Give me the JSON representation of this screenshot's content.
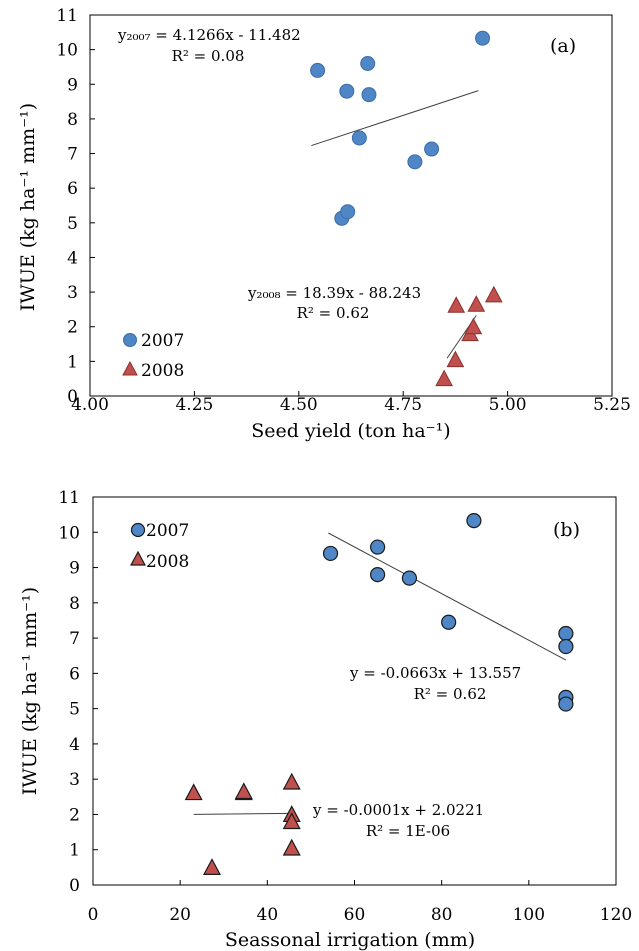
{
  "colors": {
    "series_2007": "#4f86c6",
    "series_2007_edge": "#3a6ea8",
    "series_2008": "#c0504d",
    "series_2008_edge": "#8c2f2c",
    "trendline": "#404040",
    "frame": "#000000"
  },
  "chart_data": [
    {
      "type": "scatter",
      "panel_label": "(a)",
      "xlabel": "Seed yield (ton ha⁻¹)",
      "ylabel": "IWUE (kg ha⁻¹ mm⁻¹)",
      "xlim": [
        4.0,
        5.25
      ],
      "ylim": [
        0,
        11
      ],
      "x_ticks": [
        "4.00",
        "4.25",
        "4.50",
        "4.75",
        "5.00",
        "5.25"
      ],
      "x_tick_values": [
        4.0,
        4.25,
        4.5,
        4.75,
        5.0,
        5.25
      ],
      "y_ticks": [
        "0",
        "1",
        "2",
        "3",
        "4",
        "5",
        "6",
        "7",
        "8",
        "9",
        "10",
        "11"
      ],
      "y_tick_values": [
        0,
        1,
        2,
        3,
        4,
        5,
        6,
        7,
        8,
        9,
        10,
        11
      ],
      "grid": false,
      "legend_placement": "bottom-left",
      "series": [
        {
          "name": "2007",
          "marker": "circle",
          "points": [
            [
              4.545,
              9.4
            ],
            [
              4.615,
              8.8
            ],
            [
              4.665,
              9.6
            ],
            [
              4.668,
              8.7
            ],
            [
              4.645,
              7.45
            ],
            [
              4.94,
              10.33
            ],
            [
              4.818,
              7.13
            ],
            [
              4.778,
              6.76
            ],
            [
              4.603,
              5.13
            ],
            [
              4.617,
              5.32
            ]
          ],
          "trendline": {
            "x": [
              4.53,
              4.93
            ],
            "equation_lines": [
              "y₂₀₀₇ = 4.1266x - 11.482",
              "R² = 0.08"
            ]
          }
        },
        {
          "name": "2008",
          "marker": "triangle",
          "points": [
            [
              4.848,
              0.5
            ],
            [
              4.875,
              1.05
            ],
            [
              4.877,
              2.62
            ],
            [
              4.91,
              1.8
            ],
            [
              4.918,
              2.0
            ],
            [
              4.925,
              2.65
            ],
            [
              4.967,
              2.92
            ]
          ],
          "trendline": {
            "x": [
              4.855,
              4.925
            ],
            "equation_lines": [
              "y₂₀₀₈ = 18.39x - 88.243",
              "R² = 0.62"
            ]
          }
        }
      ]
    },
    {
      "type": "scatter",
      "panel_label": "(b)",
      "xlabel": "Seassonal irrigation (mm)",
      "ylabel": "IWUE (kg ha⁻¹ mm⁻¹)",
      "xlim": [
        0,
        120
      ],
      "ylim": [
        0,
        11
      ],
      "x_ticks": [
        "0",
        "20",
        "40",
        "60",
        "80",
        "100",
        "120"
      ],
      "x_tick_values": [
        0,
        20,
        40,
        60,
        80,
        100,
        120
      ],
      "y_ticks": [
        "0",
        "1",
        "2",
        "3",
        "4",
        "5",
        "6",
        "7",
        "8",
        "9",
        "10",
        "11"
      ],
      "y_tick_values": [
        0,
        1,
        2,
        3,
        4,
        5,
        6,
        7,
        8,
        9,
        10,
        11
      ],
      "grid": false,
      "legend_placement": "top-left",
      "series": [
        {
          "name": "2007",
          "marker": "circle",
          "points": [
            [
              54.5,
              9.4
            ],
            [
              65.3,
              9.58
            ],
            [
              65.3,
              8.8
            ],
            [
              72.6,
              8.7
            ],
            [
              81.6,
              7.45
            ],
            [
              87.4,
              10.33
            ],
            [
              108.5,
              7.13
            ],
            [
              108.5,
              6.76
            ],
            [
              108.5,
              5.32
            ],
            [
              108.5,
              5.13
            ]
          ],
          "trendline": {
            "x": [
              54.0,
              108.5
            ],
            "equation_lines": [
              "y = -0.0663x + 13.557",
              "R² = 0.62"
            ]
          }
        },
        {
          "name": "2008",
          "marker": "triangle",
          "points": [
            [
              23.1,
              2.62
            ],
            [
              27.3,
              0.5
            ],
            [
              34.6,
              2.62
            ],
            [
              34.6,
              2.65
            ],
            [
              45.6,
              2.92
            ],
            [
              45.6,
              2.0
            ],
            [
              45.6,
              1.8
            ],
            [
              45.6,
              1.05
            ]
          ],
          "trendline": {
            "x": [
              23.1,
              45.6
            ],
            "equation_lines": [
              "y = -0.0001x + 2.0221",
              "R² = 1E-06"
            ]
          }
        }
      ]
    }
  ]
}
